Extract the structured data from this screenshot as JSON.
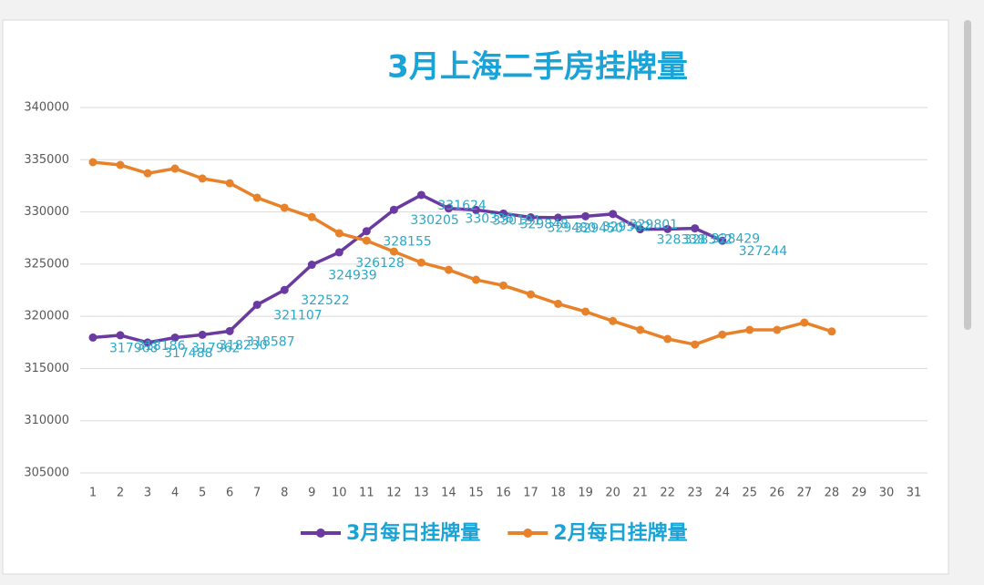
{
  "chart_data": {
    "type": "line",
    "title": "3月上海二手房挂牌量",
    "categories": [
      "1",
      "2",
      "3",
      "4",
      "5",
      "6",
      "7",
      "8",
      "9",
      "10",
      "11",
      "12",
      "13",
      "14",
      "15",
      "16",
      "17",
      "18",
      "19",
      "20",
      "21",
      "22",
      "23",
      "24",
      "25",
      "26",
      "27",
      "28",
      "29",
      "30",
      "31"
    ],
    "series": [
      {
        "name": "3月每日挂牌量",
        "color": "#6a3aa0",
        "data_labels": true,
        "values": [
          317968,
          318186,
          317488,
          317962,
          318230,
          318587,
          321107,
          322522,
          324939,
          326128,
          328155,
          330205,
          331624,
          330336,
          330191,
          329848,
          329480,
          329450,
          329582,
          329801,
          328338,
          328362,
          328429,
          327244,
          null,
          null,
          null,
          null,
          null,
          null,
          null
        ]
      },
      {
        "name": "2月每日挂牌量",
        "color": "#e8822a",
        "data_labels": false,
        "values": [
          334763,
          334500,
          333700,
          334150,
          333200,
          332750,
          331360,
          330400,
          329500,
          327950,
          327250,
          326200,
          325150,
          324450,
          323500,
          322950,
          322100,
          321200,
          320450,
          319550,
          318700,
          317830,
          317300,
          318250,
          318700,
          318700,
          319400,
          318550,
          null,
          null,
          null
        ]
      }
    ],
    "ylim": [
      305000,
      340000
    ],
    "yticks": [
      305000,
      310000,
      315000,
      320000,
      325000,
      330000,
      335000,
      340000
    ],
    "grid": true,
    "legend": "bottom"
  }
}
